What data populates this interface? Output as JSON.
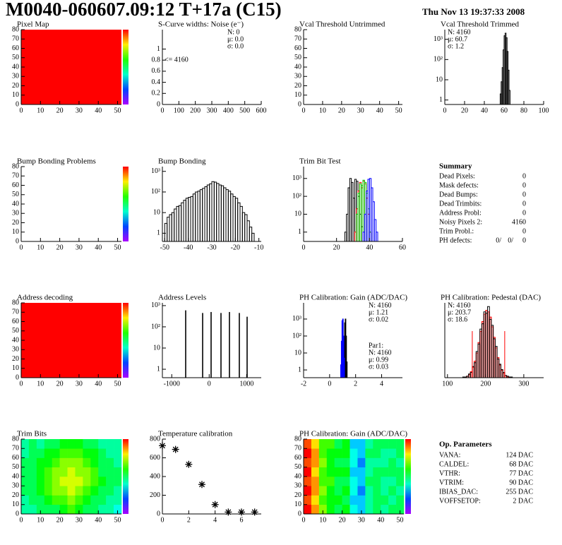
{
  "header": {
    "title": "M0040-060607.09:12 T+17a (C15)",
    "date": "Thu Nov 13 19:37:33 2008"
  },
  "chart_data": [
    {
      "type": "heatmap",
      "title": "Pixel Map",
      "color": "#ff0000",
      "colorbar": true,
      "xlim": [
        0,
        52
      ],
      "ylim": [
        0,
        80
      ],
      "xticks": [
        0,
        10,
        20,
        30,
        40,
        50
      ],
      "yticks": [
        0,
        10,
        20,
        30,
        40,
        50,
        60,
        70,
        80
      ]
    },
    {
      "type": "histogram",
      "title": "S-Curve widths: Noise (e⁻)",
      "xlim": [
        0,
        600
      ],
      "ylim": [
        0,
        1.35
      ],
      "xticks": [
        0,
        100,
        200,
        300,
        400,
        500,
        600
      ],
      "yticks": [
        0,
        0.2,
        0.4,
        0.6,
        0.8,
        1
      ],
      "stats_boxes": [
        {
          "position": "top-right",
          "lines": [
            {
              "text": "N:    0",
              "color": "#000000"
            },
            {
              "text": "μ:  0.0",
              "color": "#000000"
            },
            {
              "text": "σ:  0.0",
              "color": "#000000"
            }
          ]
        }
      ],
      "annotation": "<= 4160"
    },
    {
      "type": "histogram",
      "title": "Vcal Threshold Untrimmed",
      "xlim": [
        0,
        52
      ],
      "ylim": [
        0,
        80
      ],
      "xticks": [
        0,
        10,
        20,
        30,
        40,
        50
      ],
      "yticks": [
        0,
        10,
        20,
        30,
        40,
        50,
        60,
        70,
        80
      ]
    },
    {
      "type": "histogram",
      "title": "Vcal Threshold Trimmed",
      "log_y": true,
      "xlim": [
        0,
        100
      ],
      "ylim": [
        0.6,
        3000
      ],
      "xticks": [
        0,
        20,
        40,
        60,
        80,
        100
      ],
      "yticks": [
        1,
        10,
        {
          "value": 100,
          "label": "10²"
        },
        {
          "value": 1000,
          "label": "10³"
        }
      ],
      "bins": [
        56,
        57,
        58,
        59,
        60,
        61,
        62,
        63,
        64,
        65,
        66
      ],
      "series": [
        {
          "color": "#000000",
          "values": [
            2,
            8,
            40,
            300,
            1500,
            2000,
            1200,
            250,
            30,
            3
          ]
        }
      ],
      "stats_boxes": [
        {
          "position": "top-left",
          "lines": [
            {
              "text": "N: 4160",
              "color": "#000000"
            },
            {
              "text": "μ:  60.7",
              "color": "#000000"
            },
            {
              "text": "σ:   1.2",
              "color": "#000000"
            }
          ]
        }
      ]
    },
    {
      "type": "heatmap",
      "title": "Bump Bonding Problems",
      "colorbar": true,
      "xlim": [
        0,
        52
      ],
      "ylim": [
        0,
        80
      ],
      "xticks": [
        0,
        10,
        20,
        30,
        40,
        50
      ],
      "yticks": [
        0,
        10,
        20,
        30,
        40,
        50,
        60,
        70,
        80
      ]
    },
    {
      "type": "histogram",
      "title": "Bump Bonding",
      "log_y": true,
      "xlim": [
        -51,
        -9
      ],
      "ylim": [
        0.4,
        1700
      ],
      "xticks": [
        -50,
        -40,
        -30,
        -20,
        -10
      ],
      "yticks": [
        1,
        10,
        {
          "value": 100,
          "label": "10²"
        },
        {
          "value": 1000,
          "label": "10³"
        }
      ],
      "bins": [
        -50,
        -49,
        -48,
        -47,
        -46,
        -45,
        -44,
        -43,
        -42,
        -41,
        -40,
        -39,
        -38,
        -37,
        -36,
        -35,
        -34,
        -33,
        -32,
        -31,
        -30,
        -29,
        -28,
        -27,
        -26,
        -25,
        -24,
        -23,
        -22,
        -21,
        -20,
        -19,
        -18,
        -17,
        -16,
        -15,
        -14,
        -13,
        -12
      ],
      "series": [
        {
          "color": "#000000",
          "values": [
            3,
            6,
            8,
            10,
            15,
            20,
            22,
            30,
            40,
            50,
            55,
            60,
            80,
            100,
            110,
            130,
            150,
            180,
            220,
            250,
            320,
            300,
            260,
            220,
            200,
            160,
            130,
            110,
            80,
            60,
            50,
            30,
            20,
            10,
            8,
            4,
            2,
            1
          ]
        }
      ]
    },
    {
      "type": "histogram",
      "title": "Trim Bit Test",
      "log_y": true,
      "xlim": [
        0,
        60
      ],
      "ylim": [
        0.3,
        4600
      ],
      "xticks": [
        0,
        20,
        40,
        60
      ],
      "yticks": [
        1,
        10,
        {
          "value": 100,
          "label": "10²"
        },
        {
          "value": 1000,
          "label": "10³"
        }
      ],
      "bins": [
        24,
        25,
        26,
        27,
        28,
        29,
        30,
        31,
        32,
        33,
        34,
        35,
        36,
        37,
        38,
        39,
        40,
        41,
        42,
        43,
        44,
        45,
        46
      ],
      "series": [
        {
          "color": "#000000",
          "values": [
            null,
            1,
            10,
            300,
            1000,
            600,
            80,
            900,
            700,
            100,
            10,
            2,
            null,
            null,
            null,
            null,
            null,
            null,
            null,
            null,
            null,
            null
          ]
        },
        {
          "color": "#ff0000",
          "values": [
            null,
            null,
            null,
            null,
            null,
            null,
            null,
            1,
            20,
            200,
            600,
            300,
            700,
            500,
            80,
            10,
            1,
            null,
            null,
            null,
            null,
            null
          ]
        },
        {
          "color": "#00cc00",
          "values": [
            null,
            null,
            null,
            null,
            null,
            null,
            null,
            null,
            10,
            150,
            500,
            400,
            800,
            600,
            150,
            20,
            1,
            null,
            null,
            null,
            null,
            null
          ]
        },
        {
          "color": "#0000ff",
          "values": [
            null,
            null,
            null,
            null,
            null,
            null,
            null,
            null,
            null,
            null,
            null,
            null,
            1,
            10,
            200,
            900,
            1000,
            300,
            50,
            5,
            1,
            null
          ]
        }
      ]
    },
    {
      "type": "heatmap",
      "title": "Address decoding",
      "color": "#ff0000",
      "colorbar": true,
      "xlim": [
        0,
        52
      ],
      "ylim": [
        0,
        80
      ],
      "xticks": [
        0,
        10,
        20,
        30,
        40,
        50
      ],
      "yticks": [
        0,
        10,
        20,
        30,
        40,
        50,
        60,
        70,
        80
      ]
    },
    {
      "type": "spike",
      "title": "Address Levels",
      "log_y": true,
      "color": "#000000",
      "xlim": [
        -1250,
        1390
      ],
      "ylim": [
        0.4,
        1350
      ],
      "xticks": [
        -1000,
        0,
        1000
      ],
      "yticks": [
        1,
        10,
        {
          "value": 100,
          "label": "10²"
        },
        {
          "value": 1000,
          "label": "10³"
        }
      ],
      "x": [
        -628,
        -175,
        51,
        315,
        541,
        805,
        1013
      ],
      "values": [
        600,
        450,
        500,
        450,
        500,
        450,
        300
      ]
    },
    {
      "type": "histogram",
      "title": "PH Calibration: Gain (ADC/DAC)",
      "log_y": true,
      "xlim": [
        -2,
        5.6
      ],
      "ylim": [
        0.35,
        9000
      ],
      "xticks": [
        -2,
        0,
        2,
        4
      ],
      "yticks": [
        1,
        10,
        {
          "value": 100,
          "label": "10²"
        },
        {
          "value": 1000,
          "label": "10³"
        }
      ],
      "bins": [
        0.85,
        0.9,
        0.95,
        1,
        1.05,
        1.1,
        1.15,
        1.2,
        1.25,
        1.3,
        1.35
      ],
      "series": [
        {
          "color": "#000000",
          "values": [
            null,
            null,
            null,
            null,
            2,
            30,
            600,
            1000,
            100,
            3
          ]
        },
        {
          "color": "#0000ff",
          "values": [
            2,
            50,
            800,
            1000,
            100,
            5,
            null,
            null,
            null,
            null
          ]
        }
      ],
      "stats_boxes": [
        {
          "position": "top-right",
          "lines": [
            {
              "text": "N: 4160",
              "color": "#000000"
            },
            {
              "text": "μ:  1.21",
              "color": "#000000"
            },
            {
              "text": "σ:  0.02",
              "color": "#000000"
            }
          ]
        },
        {
          "position": "bottom-right",
          "lines": [
            {
              "text": "Par1:",
              "color": "#0000ff"
            },
            {
              "text": "N: 4160",
              "color": "#0000ff"
            },
            {
              "text": "μ:  0.99",
              "color": "#0000ff"
            },
            {
              "text": "σ:  0.03",
              "color": "#0000ff"
            }
          ]
        }
      ]
    },
    {
      "type": "histogram",
      "title": "PH Calibration: Pedestal (DAC)",
      "xlim": [
        93,
        352
      ],
      "ylim": [
        0,
        100
      ],
      "xticks": [
        100,
        200,
        300
      ],
      "bins": [
        140,
        145,
        150,
        155,
        160,
        165,
        170,
        175,
        180,
        185,
        190,
        195,
        200,
        205,
        210,
        215,
        220,
        225,
        230,
        235,
        240,
        245,
        250,
        255,
        260,
        265,
        270
      ],
      "series": [
        {
          "color": "#ff0000",
          "fill": "#ff0000",
          "values": [
            0,
            1,
            2,
            4,
            8,
            14,
            22,
            33,
            47,
            62,
            75,
            85,
            90,
            88,
            81,
            68,
            54,
            40,
            27,
            17,
            10,
            6,
            3,
            1,
            1,
            0
          ]
        },
        {
          "color": "#000000",
          "values": [
            1,
            1,
            2,
            5,
            7,
            15,
            20,
            35,
            45,
            65,
            72,
            88,
            86,
            95,
            78,
            70,
            52,
            42,
            25,
            18,
            11,
            7,
            3,
            2,
            1,
            1
          ]
        }
      ],
      "cut_lines": [
        165,
        250
      ],
      "cut_color": "#ff0000",
      "stats_boxes": [
        {
          "position": "top-left",
          "lines": [
            {
              "text": "N: 4160",
              "color": "#000000"
            },
            {
              "text": "μ:  203.7",
              "color": "#ff0000"
            },
            {
              "text": "σ:  18.6",
              "color": "#ff0000"
            }
          ]
        }
      ]
    },
    {
      "type": "heatmap",
      "title": "Trim Bits",
      "colorbar": true,
      "xlim": [
        0,
        52
      ],
      "ylim": [
        0,
        80
      ],
      "xticks": [
        0,
        10,
        20,
        30,
        40,
        50
      ],
      "yticks": [
        0,
        10,
        20,
        30,
        40,
        50,
        60,
        70,
        80
      ],
      "zlim": [
        0,
        16
      ],
      "xbins": [
        0,
        4,
        8,
        12,
        16,
        20,
        24,
        28,
        32,
        36,
        40,
        44,
        48,
        52
      ],
      "ybins": [
        0,
        10,
        20,
        30,
        40,
        50,
        60,
        70,
        80
      ],
      "z": [
        [
          7,
          7,
          8,
          8,
          8,
          9,
          10,
          9,
          8,
          8,
          7,
          7,
          6
        ],
        [
          7,
          8,
          8,
          9,
          10,
          10,
          11,
          10,
          9,
          8,
          8,
          7,
          7
        ],
        [
          8,
          8,
          9,
          10,
          11,
          11,
          12,
          11,
          10,
          9,
          8,
          8,
          7
        ],
        [
          8,
          8,
          9,
          10,
          11,
          12,
          12,
          12,
          11,
          10,
          9,
          8,
          8
        ],
        [
          8,
          8,
          9,
          10,
          11,
          11,
          12,
          11,
          11,
          10,
          8,
          8,
          8
        ],
        [
          8,
          8,
          9,
          9,
          10,
          11,
          11,
          11,
          10,
          9,
          8,
          8,
          7
        ],
        [
          7,
          8,
          8,
          9,
          9,
          10,
          10,
          10,
          9,
          9,
          8,
          7,
          7
        ],
        [
          7,
          8,
          7,
          8,
          8,
          9,
          9,
          9,
          8,
          8,
          7,
          7,
          7
        ]
      ]
    },
    {
      "type": "scatter",
      "title": "Temperature calibration",
      "color": "#000000",
      "xlim": [
        0,
        7.5
      ],
      "ylim": [
        0,
        800
      ],
      "xticks": [
        0,
        2,
        4,
        6
      ],
      "yticks": [
        0,
        200,
        400,
        600,
        800
      ],
      "x": [
        0,
        1,
        2,
        3,
        4,
        5,
        6,
        7
      ],
      "values": [
        730,
        690,
        530,
        315,
        100,
        20,
        20,
        20
      ]
    },
    {
      "type": "heatmap",
      "title": "PH Calibration: Gain (ADC/DAC)",
      "colorbar": true,
      "xlim": [
        0,
        52
      ],
      "ylim": [
        0,
        80
      ],
      "xticks": [
        0,
        10,
        20,
        30,
        40,
        50
      ],
      "yticks": [
        0,
        10,
        20,
        30,
        40,
        50,
        60,
        70,
        80
      ],
      "zlim": [
        0,
        16
      ],
      "xbins": [
        0,
        4,
        8,
        12,
        16,
        20,
        24,
        28,
        32,
        36,
        40,
        44,
        48,
        52
      ],
      "ybins": [
        0,
        10,
        20,
        30,
        40,
        50,
        60,
        70,
        80
      ],
      "z": [
        [
          16,
          14,
          11,
          9,
          8,
          9,
          6,
          5,
          7,
          8,
          7,
          8,
          8
        ],
        [
          15,
          13,
          10,
          9,
          9,
          8,
          5,
          5,
          7,
          8,
          8,
          7,
          8
        ],
        [
          16,
          14,
          11,
          9,
          8,
          9,
          6,
          4,
          7,
          8,
          7,
          8,
          7
        ],
        [
          15,
          14,
          10,
          10,
          8,
          8,
          6,
          5,
          8,
          8,
          7,
          7,
          8
        ],
        [
          16,
          13,
          10,
          9,
          9,
          9,
          5,
          5,
          7,
          8,
          8,
          8,
          8
        ],
        [
          15,
          14,
          11,
          9,
          8,
          8,
          6,
          4,
          7,
          7,
          7,
          8,
          7
        ],
        [
          16,
          14,
          10,
          9,
          9,
          9,
          6,
          5,
          8,
          8,
          7,
          7,
          8
        ],
        [
          15,
          13,
          10,
          10,
          8,
          9,
          5,
          5,
          7,
          8,
          8,
          8,
          8
        ]
      ]
    }
  ],
  "summary": {
    "title": "Summary",
    "rows": [
      {
        "label": "Dead Pixels:",
        "value": 0
      },
      {
        "label": "Mask defects:",
        "value": 0
      },
      {
        "label": "Dead Bumps:",
        "value": 0
      },
      {
        "label": "Dead Trimbits:",
        "value": 0
      },
      {
        "label": "Address Probl:",
        "value": 0
      },
      {
        "label": "Noisy Pixels 2:",
        "value": 4160
      },
      {
        "label": "Trim Probl.:",
        "value": 0
      }
    ],
    "ph_defects": {
      "label": "PH defects:",
      "parts": [
        {
          "text": "0/",
          "color": "#000000"
        },
        {
          "text": "0/",
          "color": "#ff0000"
        },
        {
          "text": "0",
          "color": "#0000ff"
        }
      ]
    }
  },
  "op_parameters": {
    "title": "Op. Parameters",
    "rows": [
      {
        "label": "VANA:",
        "value": "124 DAC"
      },
      {
        "label": "CALDEL:",
        "value": "68 DAC"
      },
      {
        "label": "VTHR:",
        "value": "77 DAC"
      },
      {
        "label": "VTRIM:",
        "value": "90 DAC"
      },
      {
        "label": "IBIAS_DAC:",
        "value": "255 DAC"
      },
      {
        "label": "VOFFSETOP:",
        "value": "2 DAC"
      }
    ]
  }
}
